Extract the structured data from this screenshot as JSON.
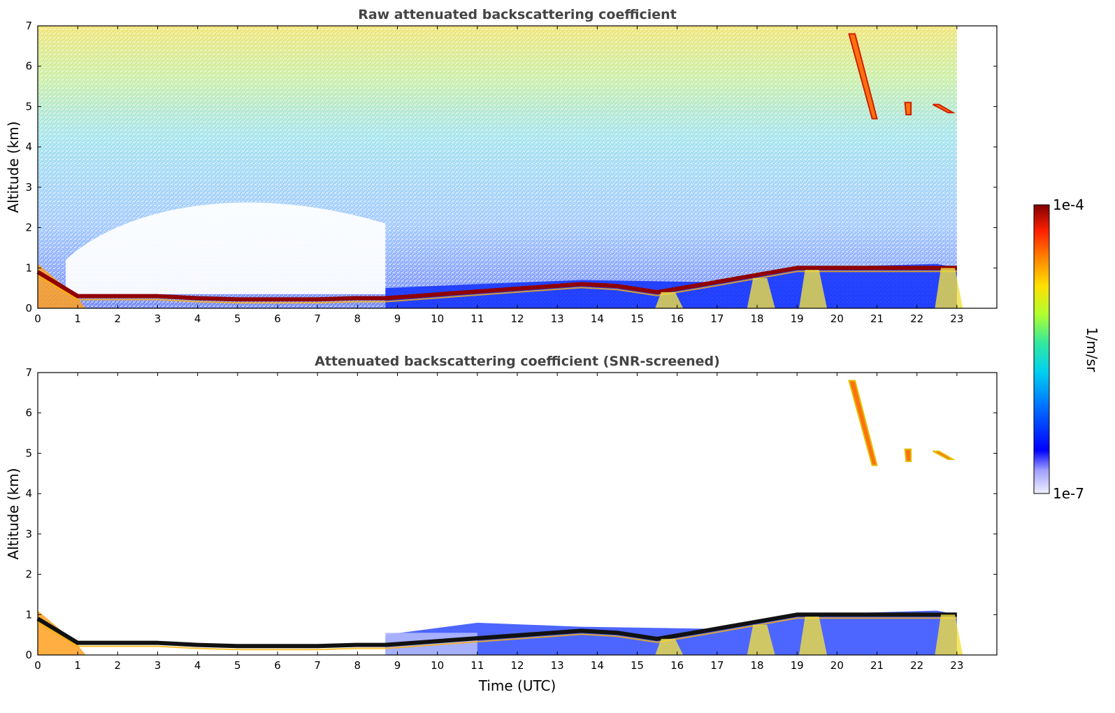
{
  "chart_data": [
    {
      "type": "heatmap",
      "title": "Raw attenuated backscattering coefficient",
      "xlabel": "",
      "ylabel": "Altitude (km)",
      "xlim": [
        0,
        24
      ],
      "ylim": [
        0,
        7
      ],
      "xticks": [
        "0",
        "1",
        "2",
        "3",
        "4",
        "5",
        "6",
        "7",
        "8",
        "9",
        "10",
        "11",
        "12",
        "13",
        "14",
        "15",
        "16",
        "17",
        "18",
        "19",
        "20",
        "21",
        "22",
        "23"
      ],
      "yticks": [
        "0",
        "1",
        "2",
        "3",
        "4",
        "5",
        "6",
        "7"
      ],
      "data_end_time": 23,
      "boundary_layer_top_km": [
        [
          0,
          0.9
        ],
        [
          0.5,
          0.6
        ],
        [
          1,
          0.3
        ],
        [
          2,
          0.3
        ],
        [
          3,
          0.3
        ],
        [
          4,
          0.25
        ],
        [
          5,
          0.22
        ],
        [
          6,
          0.22
        ],
        [
          7,
          0.22
        ],
        [
          8,
          0.25
        ],
        [
          8.7,
          0.25
        ],
        [
          13.6,
          0.6
        ],
        [
          14.5,
          0.55
        ],
        [
          15.5,
          0.4
        ],
        [
          16.7,
          0.6
        ],
        [
          19,
          1.0
        ],
        [
          22.5,
          1.0
        ],
        [
          23,
          1.0
        ]
      ],
      "cirrus_features": [
        {
          "t_start": 20.3,
          "t_end": 21.0,
          "alt_top_km": 6.8,
          "alt_bottom_km": 4.7
        },
        {
          "t_start": 21.7,
          "t_end": 21.85,
          "alt_top_km": 5.1,
          "alt_bottom_km": 4.8
        },
        {
          "t_start": 22.4,
          "t_end": 22.9,
          "alt_top_km": 5.05,
          "alt_bottom_km": 4.85
        }
      ],
      "grid": false
    },
    {
      "type": "heatmap",
      "title": "Attenuated backscattering coefficient (SNR-screened)",
      "xlabel": "Time (UTC)",
      "ylabel": "Altitude (km)",
      "xlim": [
        0,
        24
      ],
      "ylim": [
        0,
        7
      ],
      "xticks": [
        "0",
        "1",
        "2",
        "3",
        "4",
        "5",
        "6",
        "7",
        "8",
        "9",
        "10",
        "11",
        "12",
        "13",
        "14",
        "15",
        "16",
        "17",
        "18",
        "19",
        "20",
        "21",
        "22",
        "23"
      ],
      "yticks": [
        "0",
        "1",
        "2",
        "3",
        "4",
        "5",
        "6",
        "7"
      ],
      "data_end_time": 23,
      "grid": false
    }
  ],
  "colorbar": {
    "label": "1/m/sr",
    "max_label": "1e-4",
    "min_label": "1e-7",
    "scale": "log",
    "colors": [
      "#ffffff",
      "#c8c8ff",
      "#0000ff",
      "#0080ff",
      "#00d8e8",
      "#40ff80",
      "#e8ff20",
      "#ffb000",
      "#ff4000",
      "#c00000",
      "#800000"
    ]
  }
}
